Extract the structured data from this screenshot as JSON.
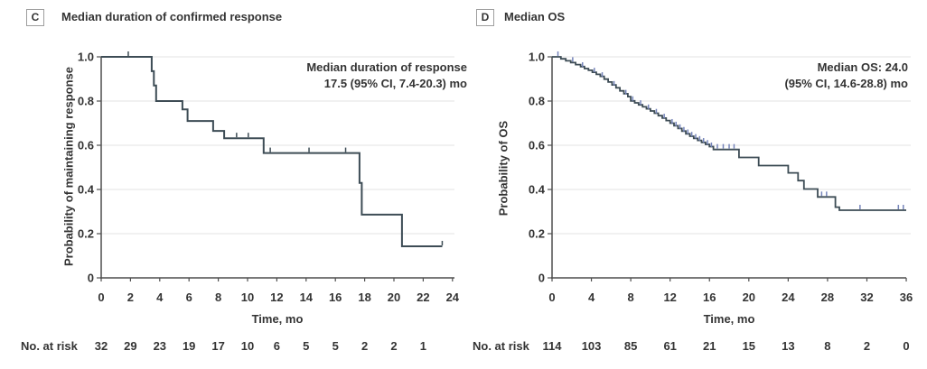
{
  "figure": {
    "background": "#ffffff",
    "colors": {
      "curve": "#3d4c55",
      "censor_blue": "#7584ba",
      "grid": "#e3e3e3",
      "axis": "#4f4f4f",
      "text": "#343434",
      "panel_box_border": "#9e9e9e"
    }
  },
  "chart_data": [
    {
      "type": "line",
      "subtype": "kaplan-meier-step",
      "panel_label": "C",
      "title": "Median duration of confirmed response",
      "annotation_line1": "Median duration of response",
      "annotation_line2": "17.5 (95% CI, 7.4-20.3) mo",
      "xlabel": "Time, mo",
      "ylabel": "Probability of maintaining response",
      "xlim": [
        0,
        24
      ],
      "ylim": [
        0,
        1.0
      ],
      "grid": "horizontal",
      "x_ticks": [
        0,
        2,
        4,
        6,
        8,
        10,
        12,
        14,
        16,
        18,
        20,
        22,
        24
      ],
      "y_ticks": [
        "1.0",
        "0.8",
        "0.6",
        "0.4",
        "0.2",
        "0"
      ],
      "steps": [
        [
          0,
          1.0
        ],
        [
          3.45,
          0.935
        ],
        [
          3.6,
          0.87
        ],
        [
          3.75,
          0.8
        ],
        [
          5.55,
          0.762
        ],
        [
          5.9,
          0.71
        ],
        [
          7.65,
          0.665
        ],
        [
          8.4,
          0.632
        ],
        [
          11.1,
          0.565
        ],
        [
          17.65,
          0.43
        ],
        [
          17.8,
          0.286
        ],
        [
          20.55,
          0.143
        ],
        [
          23.3,
          0.143
        ]
      ],
      "censor_marks": [
        [
          1.85,
          1.0
        ],
        [
          9.25,
          0.632
        ],
        [
          10.05,
          0.632
        ],
        [
          11.55,
          0.565
        ],
        [
          14.2,
          0.565
        ],
        [
          16.7,
          0.565
        ],
        [
          23.3,
          0.143
        ]
      ],
      "risk_label": "No. at risk",
      "risk_times": [
        0,
        2,
        4,
        6,
        8,
        10,
        12,
        14,
        16,
        18,
        20,
        22
      ],
      "risk_values": [
        32,
        29,
        23,
        19,
        17,
        10,
        6,
        5,
        5,
        2,
        2,
        1
      ]
    },
    {
      "type": "line",
      "subtype": "kaplan-meier-step",
      "panel_label": "D",
      "title": "Median OS",
      "annotation_line1": "Median OS: 24.0",
      "annotation_line2": "(95% CI, 14.6-28.8) mo",
      "xlabel": "Time, mo",
      "ylabel": "Probability of OS",
      "xlim": [
        0,
        36
      ],
      "ylim": [
        0,
        1.0
      ],
      "grid": "horizontal",
      "x_ticks": [
        0,
        4,
        8,
        12,
        16,
        20,
        24,
        28,
        32,
        36
      ],
      "y_ticks": [
        "1.0",
        "0.8",
        "0.6",
        "0.4",
        "0.2",
        "0"
      ],
      "steps": [
        [
          0,
          1.0
        ],
        [
          0.9,
          0.991
        ],
        [
          1.4,
          0.982
        ],
        [
          1.9,
          0.974
        ],
        [
          2.4,
          0.965
        ],
        [
          2.9,
          0.956
        ],
        [
          3.3,
          0.947
        ],
        [
          3.7,
          0.939
        ],
        [
          4.1,
          0.93
        ],
        [
          4.5,
          0.921
        ],
        [
          4.9,
          0.912
        ],
        [
          5.3,
          0.899
        ],
        [
          5.7,
          0.886
        ],
        [
          6.1,
          0.873
        ],
        [
          6.5,
          0.86
        ],
        [
          6.9,
          0.846
        ],
        [
          7.3,
          0.833
        ],
        [
          7.7,
          0.82
        ],
        [
          8.0,
          0.801
        ],
        [
          8.4,
          0.792
        ],
        [
          8.8,
          0.783
        ],
        [
          9.2,
          0.774
        ],
        [
          9.6,
          0.765
        ],
        [
          10.0,
          0.755
        ],
        [
          10.4,
          0.745
        ],
        [
          10.8,
          0.734
        ],
        [
          11.2,
          0.723
        ],
        [
          11.6,
          0.712
        ],
        [
          12.0,
          0.7
        ],
        [
          12.4,
          0.688
        ],
        [
          12.8,
          0.676
        ],
        [
          13.2,
          0.664
        ],
        [
          13.6,
          0.652
        ],
        [
          14.0,
          0.641
        ],
        [
          14.4,
          0.631
        ],
        [
          14.8,
          0.622
        ],
        [
          15.2,
          0.613
        ],
        [
          15.6,
          0.604
        ],
        [
          16.0,
          0.594
        ],
        [
          16.4,
          0.581
        ],
        [
          19.0,
          0.545
        ],
        [
          21.0,
          0.508
        ],
        [
          24.0,
          0.475
        ],
        [
          25.0,
          0.44
        ],
        [
          25.6,
          0.402
        ],
        [
          27.0,
          0.366
        ],
        [
          28.8,
          0.32
        ],
        [
          29.2,
          0.306
        ],
        [
          36.0,
          0.306
        ]
      ],
      "censor_marks": [
        [
          0.6,
          1.0
        ],
        [
          2.1,
          0.974
        ],
        [
          3.1,
          0.951
        ],
        [
          4.3,
          0.926
        ],
        [
          5.1,
          0.906
        ],
        [
          6.3,
          0.866
        ],
        [
          7.5,
          0.826
        ],
        [
          8.2,
          0.797
        ],
        [
          9.0,
          0.779
        ],
        [
          9.8,
          0.76
        ],
        [
          10.6,
          0.74
        ],
        [
          11.4,
          0.718
        ],
        [
          12.2,
          0.694
        ],
        [
          12.6,
          0.682
        ],
        [
          13.0,
          0.67
        ],
        [
          13.4,
          0.658
        ],
        [
          13.8,
          0.647
        ],
        [
          14.2,
          0.636
        ],
        [
          14.6,
          0.626
        ],
        [
          15.0,
          0.617
        ],
        [
          15.4,
          0.608
        ],
        [
          15.8,
          0.599
        ],
        [
          16.2,
          0.588
        ],
        [
          16.8,
          0.581
        ],
        [
          17.4,
          0.581
        ],
        [
          18.0,
          0.581
        ],
        [
          18.5,
          0.581
        ],
        [
          27.4,
          0.366
        ],
        [
          27.9,
          0.366
        ],
        [
          31.3,
          0.306
        ],
        [
          35.2,
          0.306
        ],
        [
          35.7,
          0.306
        ]
      ],
      "risk_label": "No. at risk",
      "risk_times": [
        0,
        4,
        8,
        12,
        16,
        20,
        24,
        28,
        32,
        36
      ],
      "risk_values": [
        114,
        103,
        85,
        61,
        21,
        15,
        13,
        8,
        2,
        0
      ]
    }
  ]
}
